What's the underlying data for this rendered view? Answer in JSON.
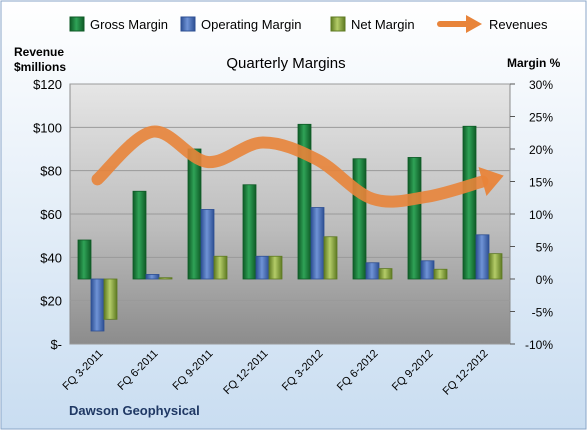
{
  "chart_data": {
    "type": "bar",
    "title": "Quarterly Margins",
    "categories": [
      "FQ 3-2011",
      "FQ 6-2011",
      "FQ 9-2011",
      "FQ 12-2011",
      "FQ 3-2012",
      "FQ 6-2012",
      "FQ 9-2012",
      "FQ 12-2012"
    ],
    "series": [
      {
        "name": "Gross Margin",
        "axis": "right",
        "color": "#1E7A3C",
        "values": [
          6,
          13.5,
          20,
          14.5,
          23.8,
          18.5,
          18.7,
          23.5
        ]
      },
      {
        "name": "Operating Margin",
        "axis": "right",
        "color": "#4169B2",
        "values": [
          -8,
          0.7,
          10.7,
          3.5,
          11,
          2.5,
          2.8,
          6.8
        ]
      },
      {
        "name": "Net Margin",
        "axis": "right",
        "color": "#8BAA3C",
        "values": [
          -6.2,
          0.2,
          3.5,
          3.5,
          6.5,
          1.6,
          1.5,
          3.9
        ]
      },
      {
        "name": "Revenues",
        "axis": "left",
        "type": "line",
        "color": "#E8843A",
        "values": [
          76,
          98,
          84,
          93,
          85,
          67,
          68,
          75
        ]
      }
    ],
    "left_axis": {
      "label_line1": "Revenue",
      "label_line2": "$millions",
      "range": [
        0,
        120
      ],
      "ticks": [
        "$-",
        "$20",
        "$40",
        "$60",
        "$80",
        "$100",
        "$120"
      ]
    },
    "right_axis": {
      "label": "Margin %",
      "range": [
        -10,
        30
      ],
      "ticks": [
        "-10%",
        "-5%",
        "0%",
        "5%",
        "10%",
        "15%",
        "20%",
        "25%",
        "30%"
      ]
    },
    "legend_position": "top",
    "grid": true,
    "footer": "Dawson Geophysical"
  }
}
